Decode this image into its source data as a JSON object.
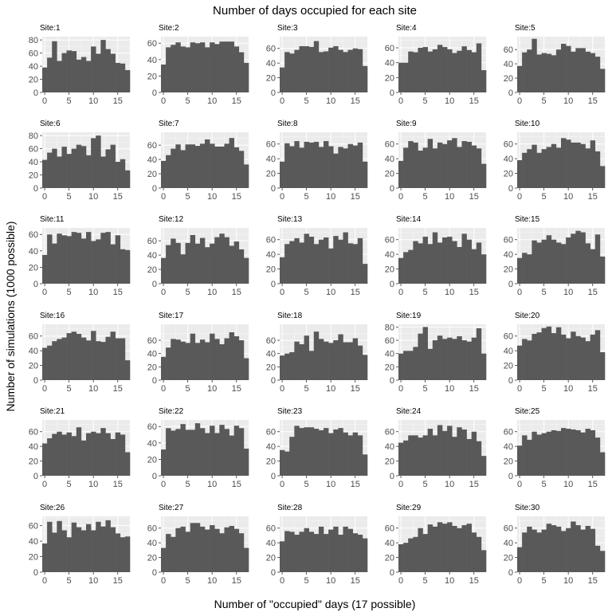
{
  "chart_data": {
    "type": "bar",
    "title": "Number of days occupied for each site",
    "xlabel": "Number of \"occupied\" days (17 possible)",
    "ylabel": "Number of simulations (1000 possible)",
    "x": [
      0,
      1,
      2,
      3,
      4,
      5,
      6,
      7,
      8,
      9,
      10,
      11,
      12,
      13,
      14,
      15,
      16,
      17
    ],
    "xlim": [
      -0.5,
      17.5
    ],
    "x_ticks": [
      0,
      5,
      10,
      15
    ],
    "grid": true,
    "facets": [
      {
        "label": "Site:1",
        "ylim": [
          0,
          85
        ],
        "y_ticks": [
          0,
          20,
          40,
          60,
          80
        ],
        "values": [
          38,
          53,
          78,
          48,
          60,
          64,
          63,
          50,
          54,
          48,
          70,
          59,
          80,
          66,
          59,
          45,
          44,
          34
        ]
      },
      {
        "label": "Site:2",
        "ylim": [
          0,
          68
        ],
        "y_ticks": [
          0,
          20,
          40,
          60
        ],
        "values": [
          34,
          55,
          58,
          61,
          56,
          55,
          61,
          60,
          61,
          55,
          61,
          59,
          62,
          62,
          62,
          56,
          49,
          36
        ]
      },
      {
        "label": "Site:3",
        "ylim": [
          0,
          76
        ],
        "y_ticks": [
          0,
          20,
          40,
          60
        ],
        "values": [
          34,
          55,
          53,
          58,
          63,
          63,
          62,
          70,
          55,
          56,
          61,
          63,
          58,
          55,
          58,
          60,
          59,
          36
        ]
      },
      {
        "label": "Site:4",
        "ylim": [
          0,
          75
        ],
        "y_ticks": [
          0,
          20,
          40,
          60
        ],
        "values": [
          40,
          40,
          55,
          54,
          60,
          61,
          55,
          58,
          64,
          61,
          58,
          53,
          56,
          62,
          57,
          54,
          66,
          30
        ]
      },
      {
        "label": "Site:5",
        "ylim": [
          0,
          78
        ],
        "y_ticks": [
          0,
          20,
          40,
          60
        ],
        "values": [
          37,
          56,
          60,
          75,
          53,
          55,
          54,
          52,
          60,
          68,
          65,
          57,
          62,
          62,
          57,
          55,
          50,
          33
        ]
      },
      {
        "label": "Site:6",
        "ylim": [
          0,
          85
        ],
        "y_ticks": [
          0,
          20,
          40,
          60,
          80
        ],
        "values": [
          43,
          54,
          60,
          48,
          63,
          52,
          60,
          66,
          64,
          50,
          76,
          80,
          48,
          59,
          66,
          40,
          44,
          27
        ]
      },
      {
        "label": "Site:7",
        "ylim": [
          0,
          78
        ],
        "y_ticks": [
          0,
          20,
          40,
          60
        ],
        "values": [
          38,
          46,
          55,
          61,
          53,
          61,
          61,
          59,
          62,
          68,
          62,
          58,
          58,
          62,
          70,
          57,
          52,
          33
        ]
      },
      {
        "label": "Site:8",
        "ylim": [
          0,
          76
        ],
        "y_ticks": [
          0,
          20,
          40,
          60
        ],
        "values": [
          36,
          61,
          57,
          64,
          55,
          63,
          62,
          63,
          56,
          64,
          57,
          47,
          56,
          54,
          60,
          58,
          62,
          36
        ]
      },
      {
        "label": "Site:9",
        "ylim": [
          0,
          76
        ],
        "y_ticks": [
          0,
          20,
          40,
          60
        ],
        "values": [
          37,
          55,
          64,
          62,
          51,
          55,
          67,
          54,
          62,
          60,
          65,
          68,
          56,
          64,
          63,
          58,
          54,
          33
        ]
      },
      {
        "label": "Site:10",
        "ylim": [
          0,
          76
        ],
        "y_ticks": [
          0,
          20,
          40,
          60
        ],
        "values": [
          38,
          48,
          53,
          59,
          48,
          53,
          56,
          60,
          55,
          68,
          66,
          62,
          62,
          60,
          54,
          65,
          50,
          30
        ]
      },
      {
        "label": "Site:11",
        "ylim": [
          0,
          68
        ],
        "y_ticks": [
          0,
          20,
          40,
          60
        ],
        "values": [
          35,
          60,
          49,
          61,
          59,
          58,
          63,
          62,
          55,
          63,
          52,
          54,
          62,
          63,
          48,
          59,
          42,
          41
        ]
      },
      {
        "label": "Site:12",
        "ylim": [
          0,
          78
        ],
        "y_ticks": [
          0,
          20,
          40,
          60
        ],
        "values": [
          36,
          54,
          63,
          57,
          41,
          57,
          68,
          56,
          64,
          51,
          56,
          65,
          70,
          65,
          53,
          59,
          48,
          36
        ]
      },
      {
        "label": "Site:13",
        "ylim": [
          0,
          76
        ],
        "y_ticks": [
          0,
          20,
          40,
          60
        ],
        "values": [
          36,
          54,
          58,
          62,
          56,
          68,
          64,
          54,
          60,
          63,
          48,
          65,
          60,
          70,
          55,
          54,
          62,
          27
        ]
      },
      {
        "label": "Site:14",
        "ylim": [
          0,
          76
        ],
        "y_ticks": [
          0,
          20,
          40,
          60
        ],
        "values": [
          35,
          43,
          46,
          58,
          55,
          64,
          54,
          70,
          56,
          63,
          64,
          58,
          50,
          68,
          60,
          47,
          56,
          40
        ]
      },
      {
        "label": "Site:15",
        "ylim": [
          0,
          76
        ],
        "y_ticks": [
          0,
          20,
          40,
          60
        ],
        "values": [
          35,
          42,
          40,
          59,
          56,
          60,
          66,
          60,
          56,
          54,
          63,
          68,
          72,
          70,
          55,
          47,
          67,
          37
        ]
      },
      {
        "label": "Site:16",
        "ylim": [
          0,
          76
        ],
        "y_ticks": [
          0,
          20,
          40,
          60
        ],
        "values": [
          44,
          47,
          53,
          56,
          58,
          64,
          66,
          63,
          58,
          54,
          67,
          53,
          52,
          59,
          66,
          57,
          57,
          27
        ]
      },
      {
        "label": "Site:17",
        "ylim": [
          0,
          84
        ],
        "y_ticks": [
          0,
          20,
          40,
          60
        ],
        "values": [
          35,
          49,
          62,
          61,
          58,
          56,
          70,
          56,
          61,
          57,
          70,
          62,
          54,
          63,
          72,
          66,
          60,
          33
        ]
      },
      {
        "label": "Site:18",
        "ylim": [
          0,
          84
        ],
        "y_ticks": [
          0,
          20,
          40,
          60
        ],
        "values": [
          37,
          40,
          42,
          58,
          54,
          67,
          44,
          73,
          62,
          58,
          56,
          60,
          69,
          57,
          57,
          63,
          52,
          38
        ]
      },
      {
        "label": "Site:19",
        "ylim": [
          0,
          84
        ],
        "y_ticks": [
          0,
          20,
          40,
          60,
          80
        ],
        "values": [
          40,
          44,
          44,
          50,
          70,
          80,
          47,
          60,
          67,
          62,
          64,
          62,
          66,
          60,
          58,
          64,
          78,
          40
        ]
      },
      {
        "label": "Site:20",
        "ylim": [
          0,
          76
        ],
        "y_ticks": [
          0,
          20,
          40,
          60
        ],
        "values": [
          47,
          56,
          54,
          63,
          65,
          71,
          73,
          64,
          72,
          62,
          57,
          66,
          60,
          58,
          53,
          62,
          68,
          38
        ]
      },
      {
        "label": "Site:21",
        "ylim": [
          0,
          76
        ],
        "y_ticks": [
          0,
          20,
          40,
          60
        ],
        "values": [
          44,
          51,
          57,
          60,
          56,
          59,
          54,
          66,
          48,
          58,
          60,
          58,
          65,
          58,
          50,
          59,
          56,
          32
        ]
      },
      {
        "label": "Site:22",
        "ylim": [
          0,
          68
        ],
        "y_ticks": [
          0,
          20,
          40,
          60
        ],
        "values": [
          32,
          58,
          55,
          57,
          63,
          56,
          56,
          64,
          58,
          52,
          61,
          52,
          62,
          57,
          49,
          61,
          58,
          33
        ]
      },
      {
        "label": "Site:23",
        "ylim": [
          0,
          76
        ],
        "y_ticks": [
          0,
          20,
          40,
          60
        ],
        "values": [
          35,
          33,
          53,
          68,
          65,
          66,
          66,
          64,
          62,
          65,
          58,
          63,
          65,
          59,
          55,
          59,
          55,
          29
        ]
      },
      {
        "label": "Site:24",
        "ylim": [
          0,
          76
        ],
        "y_ticks": [
          0,
          20,
          40,
          60
        ],
        "values": [
          45,
          48,
          55,
          55,
          52,
          55,
          64,
          55,
          69,
          61,
          68,
          53,
          66,
          63,
          50,
          60,
          47,
          27
        ]
      },
      {
        "label": "Site:25",
        "ylim": [
          0,
          76
        ],
        "y_ticks": [
          0,
          20,
          40,
          60
        ],
        "values": [
          41,
          55,
          49,
          60,
          56,
          58,
          60,
          62,
          61,
          65,
          64,
          63,
          62,
          59,
          64,
          62,
          52,
          32
        ]
      },
      {
        "label": "Site:26",
        "ylim": [
          0,
          72
        ],
        "y_ticks": [
          0,
          20,
          40,
          60
        ],
        "values": [
          37,
          65,
          51,
          66,
          54,
          45,
          64,
          58,
          54,
          62,
          54,
          65,
          59,
          67,
          58,
          50,
          45,
          46
        ]
      },
      {
        "label": "Site:27",
        "ylim": [
          0,
          76
        ],
        "y_ticks": [
          0,
          20,
          40,
          60
        ],
        "values": [
          33,
          52,
          48,
          60,
          62,
          55,
          67,
          67,
          62,
          58,
          64,
          59,
          53,
          61,
          63,
          59,
          53,
          33
        ]
      },
      {
        "label": "Site:28",
        "ylim": [
          0,
          76
        ],
        "y_ticks": [
          0,
          20,
          40,
          60
        ],
        "values": [
          42,
          56,
          55,
          51,
          55,
          60,
          55,
          52,
          62,
          52,
          58,
          62,
          51,
          62,
          59,
          53,
          51,
          46
        ]
      },
      {
        "label": "Site:29",
        "ylim": [
          0,
          76
        ],
        "y_ticks": [
          0,
          20,
          40,
          60
        ],
        "values": [
          38,
          40,
          46,
          48,
          60,
          52,
          65,
          62,
          68,
          66,
          68,
          63,
          60,
          64,
          66,
          54,
          48,
          30
        ]
      },
      {
        "label": "Site:30",
        "ylim": [
          0,
          76
        ],
        "y_ticks": [
          0,
          20,
          40,
          60
        ],
        "values": [
          34,
          54,
          62,
          58,
          54,
          58,
          66,
          64,
          62,
          56,
          60,
          69,
          64,
          58,
          63,
          59,
          36,
          29
        ]
      }
    ]
  }
}
